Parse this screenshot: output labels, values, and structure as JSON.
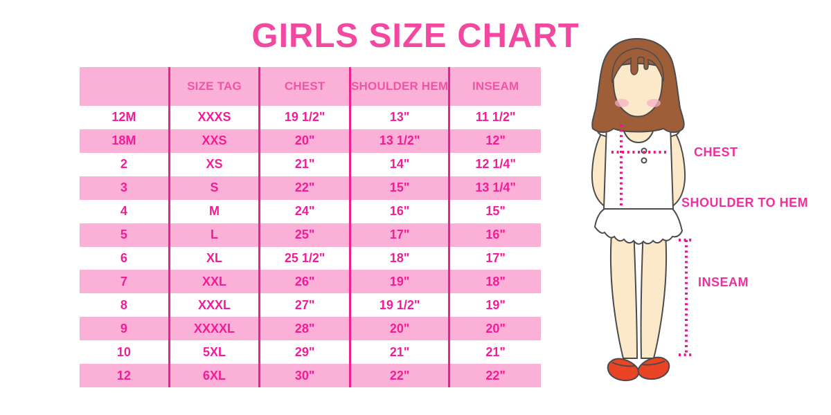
{
  "title": "GIRLS SIZE CHART",
  "chart_data": {
    "type": "table",
    "title": "GIRLS SIZE CHART",
    "columns": [
      "",
      "SIZE TAG",
      "CHEST",
      "SHOULDER HEM",
      "INSEAM"
    ],
    "rows": [
      [
        "12M",
        "XXXS",
        "19 1/2\"",
        "13\"",
        "11 1/2\""
      ],
      [
        "18M",
        "XXS",
        "20\"",
        "13 1/2\"",
        "12\""
      ],
      [
        "2",
        "XS",
        "21\"",
        "14\"",
        "12 1/4\""
      ],
      [
        "3",
        "S",
        "22\"",
        "15\"",
        "13 1/4\""
      ],
      [
        "4",
        "M",
        "24\"",
        "16\"",
        "15\""
      ],
      [
        "5",
        "L",
        "25\"",
        "17\"",
        "16\""
      ],
      [
        "6",
        "XL",
        "25 1/2\"",
        "18\"",
        "17\""
      ],
      [
        "7",
        "XXL",
        "26\"",
        "19\"",
        "18\""
      ],
      [
        "8",
        "XXXL",
        "27\"",
        "19 1/2\"",
        "19\""
      ],
      [
        "9",
        "XXXXL",
        "28\"",
        "20\"",
        "20\""
      ],
      [
        "10",
        "5XL",
        "29\"",
        "21\"",
        "21\""
      ],
      [
        "12",
        "6XL",
        "30\"",
        "22\"",
        "22\""
      ]
    ],
    "row_style": "alternating white and pink, starting white",
    "legend_position": "none",
    "grid": "vertical magenta dividers only"
  },
  "diagram": {
    "chest_label": "CHEST",
    "shoulder_to_hem_label": "SHOULDER TO HEM",
    "inseam_label": "INSEAM"
  },
  "colors": {
    "title_pink": "#f2489f",
    "row_pink": "#fbb1d7",
    "divider_magenta": "#ee1f8e",
    "cell_text_pink": "#f11d96",
    "header_text_pink": "#f153a7",
    "label_pink": "#ef2f9f",
    "dotted_line_pink": "#f0148c",
    "hair_brown": "#9d5e38",
    "skin": "#fbe9c9",
    "blush": "#f5afc1",
    "shoe_red": "#ea4426"
  }
}
